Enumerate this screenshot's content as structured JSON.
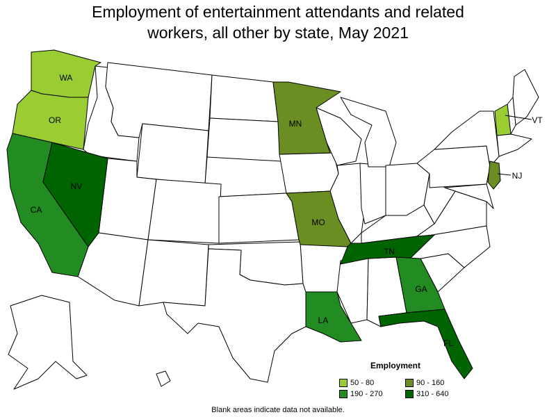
{
  "title_line1": "Employment of entertainment attendants and related",
  "title_line2": "workers, all other by state, May 2021",
  "legend": {
    "title": "Employment",
    "items": [
      {
        "label": "50 - 80",
        "color": "#9acd32"
      },
      {
        "label": "90 - 160",
        "color": "#6b8e23"
      },
      {
        "label": "190 - 270",
        "color": "#228b22"
      },
      {
        "label": "310 - 640",
        "color": "#006400"
      }
    ]
  },
  "states": {
    "WA": {
      "label": "WA",
      "color": "#9acd32"
    },
    "OR": {
      "label": "OR",
      "color": "#9acd32"
    },
    "CA": {
      "label": "CA",
      "color": "#228b22"
    },
    "NV": {
      "label": "NV",
      "color": "#006400"
    },
    "MN": {
      "label": "MN",
      "color": "#6b8e23"
    },
    "MO": {
      "label": "MO",
      "color": "#6b8e23"
    },
    "LA": {
      "label": "LA",
      "color": "#228b22"
    },
    "TN": {
      "label": "TN",
      "color": "#006400"
    },
    "GA": {
      "label": "GA",
      "color": "#228b22"
    },
    "FL": {
      "label": "FL",
      "color": "#006400"
    },
    "VT": {
      "label": "VT",
      "color": "#9acd32"
    },
    "NJ": {
      "label": "NJ",
      "color": "#6b8e23"
    }
  },
  "footnote": "Blank areas indicate data not available."
}
